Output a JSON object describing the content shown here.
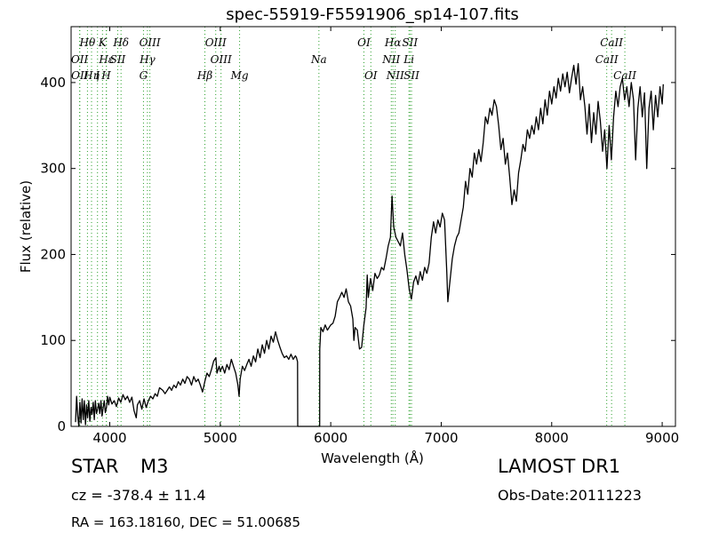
{
  "chart_data": {
    "type": "line",
    "title": "spec-55919-F5591906_sp14-107.fits",
    "xlabel": "Wavelength (Å)",
    "ylabel": "Flux (relative)",
    "xlim": [
      3650,
      9120
    ],
    "ylim": [
      0,
      465
    ],
    "xticks": [
      4000,
      5000,
      6000,
      7000,
      8000,
      9000
    ],
    "yticks": [
      0,
      100,
      200,
      300,
      400
    ],
    "grid": false,
    "series": [
      {
        "values": [
          [
            3690,
            5
          ],
          [
            3700,
            35
          ],
          [
            3710,
            12
          ],
          [
            3720,
            0
          ],
          [
            3730,
            28
          ],
          [
            3740,
            4
          ],
          [
            3750,
            32
          ],
          [
            3760,
            8
          ],
          [
            3770,
            30
          ],
          [
            3780,
            2
          ],
          [
            3790,
            25
          ],
          [
            3800,
            10
          ],
          [
            3810,
            30
          ],
          [
            3820,
            6
          ],
          [
            3830,
            22
          ],
          [
            3840,
            14
          ],
          [
            3850,
            28
          ],
          [
            3860,
            8
          ],
          [
            3870,
            30
          ],
          [
            3880,
            15
          ],
          [
            3890,
            20
          ],
          [
            3900,
            27
          ],
          [
            3910,
            15
          ],
          [
            3920,
            30
          ],
          [
            3930,
            12
          ],
          [
            3940,
            22
          ],
          [
            3950,
            30
          ],
          [
            3960,
            16
          ],
          [
            3970,
            22
          ],
          [
            3980,
            35
          ],
          [
            3990,
            25
          ],
          [
            4000,
            34
          ],
          [
            4020,
            26
          ],
          [
            4040,
            30
          ],
          [
            4060,
            23
          ],
          [
            4080,
            33
          ],
          [
            4100,
            28
          ],
          [
            4120,
            37
          ],
          [
            4140,
            31
          ],
          [
            4160,
            35
          ],
          [
            4180,
            28
          ],
          [
            4200,
            34
          ],
          [
            4220,
            18
          ],
          [
            4240,
            10
          ],
          [
            4250,
            25
          ],
          [
            4270,
            30
          ],
          [
            4290,
            20
          ],
          [
            4310,
            32
          ],
          [
            4330,
            22
          ],
          [
            4350,
            30
          ],
          [
            4370,
            35
          ],
          [
            4390,
            32
          ],
          [
            4410,
            38
          ],
          [
            4430,
            35
          ],
          [
            4450,
            45
          ],
          [
            4480,
            42
          ],
          [
            4500,
            38
          ],
          [
            4520,
            42
          ],
          [
            4540,
            46
          ],
          [
            4560,
            42
          ],
          [
            4580,
            48
          ],
          [
            4600,
            45
          ],
          [
            4620,
            52
          ],
          [
            4640,
            48
          ],
          [
            4660,
            55
          ],
          [
            4680,
            50
          ],
          [
            4700,
            58
          ],
          [
            4720,
            55
          ],
          [
            4740,
            48
          ],
          [
            4760,
            58
          ],
          [
            4780,
            52
          ],
          [
            4800,
            55
          ],
          [
            4820,
            48
          ],
          [
            4840,
            40
          ],
          [
            4860,
            52
          ],
          [
            4880,
            62
          ],
          [
            4900,
            58
          ],
          [
            4920,
            66
          ],
          [
            4940,
            76
          ],
          [
            4960,
            80
          ],
          [
            4970,
            62
          ],
          [
            4990,
            70
          ],
          [
            5000,
            64
          ],
          [
            5020,
            70
          ],
          [
            5040,
            62
          ],
          [
            5060,
            72
          ],
          [
            5080,
            66
          ],
          [
            5100,
            78
          ],
          [
            5120,
            70
          ],
          [
            5140,
            62
          ],
          [
            5160,
            48
          ],
          [
            5170,
            35
          ],
          [
            5180,
            55
          ],
          [
            5200,
            70
          ],
          [
            5220,
            65
          ],
          [
            5240,
            72
          ],
          [
            5260,
            78
          ],
          [
            5280,
            70
          ],
          [
            5300,
            82
          ],
          [
            5320,
            75
          ],
          [
            5340,
            90
          ],
          [
            5360,
            80
          ],
          [
            5380,
            95
          ],
          [
            5400,
            85
          ],
          [
            5420,
            100
          ],
          [
            5440,
            90
          ],
          [
            5460,
            105
          ],
          [
            5480,
            98
          ],
          [
            5500,
            110
          ],
          [
            5520,
            100
          ],
          [
            5540,
            92
          ],
          [
            5560,
            85
          ],
          [
            5580,
            80
          ],
          [
            5600,
            82
          ],
          [
            5620,
            78
          ],
          [
            5640,
            84
          ],
          [
            5660,
            78
          ],
          [
            5680,
            82
          ],
          [
            5690,
            80
          ],
          [
            5700,
            75
          ],
          [
            5701,
            0
          ],
          [
            5900,
            0
          ],
          [
            5901,
            90
          ],
          [
            5910,
            115
          ],
          [
            5930,
            110
          ],
          [
            5950,
            118
          ],
          [
            5970,
            112
          ],
          [
            6000,
            118
          ],
          [
            6020,
            120
          ],
          [
            6040,
            128
          ],
          [
            6060,
            145
          ],
          [
            6080,
            150
          ],
          [
            6100,
            156
          ],
          [
            6120,
            150
          ],
          [
            6140,
            160
          ],
          [
            6160,
            145
          ],
          [
            6180,
            140
          ],
          [
            6200,
            125
          ],
          [
            6210,
            100
          ],
          [
            6220,
            115
          ],
          [
            6240,
            112
          ],
          [
            6260,
            90
          ],
          [
            6280,
            92
          ],
          [
            6300,
            118
          ],
          [
            6320,
            138
          ],
          [
            6330,
            176
          ],
          [
            6340,
            150
          ],
          [
            6360,
            172
          ],
          [
            6380,
            158
          ],
          [
            6400,
            178
          ],
          [
            6420,
            172
          ],
          [
            6440,
            176
          ],
          [
            6460,
            185
          ],
          [
            6480,
            182
          ],
          [
            6500,
            195
          ],
          [
            6520,
            210
          ],
          [
            6540,
            220
          ],
          [
            6555,
            268
          ],
          [
            6570,
            232
          ],
          [
            6590,
            220
          ],
          [
            6610,
            215
          ],
          [
            6630,
            210
          ],
          [
            6650,
            225
          ],
          [
            6670,
            200
          ],
          [
            6690,
            182
          ],
          [
            6710,
            160
          ],
          [
            6730,
            148
          ],
          [
            6750,
            168
          ],
          [
            6770,
            175
          ],
          [
            6790,
            165
          ],
          [
            6810,
            180
          ],
          [
            6830,
            170
          ],
          [
            6850,
            185
          ],
          [
            6870,
            178
          ],
          [
            6890,
            190
          ],
          [
            6910,
            220
          ],
          [
            6930,
            238
          ],
          [
            6950,
            225
          ],
          [
            6970,
            240
          ],
          [
            6990,
            232
          ],
          [
            7010,
            248
          ],
          [
            7030,
            240
          ],
          [
            7050,
            180
          ],
          [
            7060,
            145
          ],
          [
            7080,
            170
          ],
          [
            7100,
            195
          ],
          [
            7120,
            210
          ],
          [
            7140,
            220
          ],
          [
            7160,
            225
          ],
          [
            7180,
            240
          ],
          [
            7200,
            255
          ],
          [
            7220,
            285
          ],
          [
            7240,
            270
          ],
          [
            7260,
            300
          ],
          [
            7280,
            290
          ],
          [
            7300,
            318
          ],
          [
            7320,
            305
          ],
          [
            7340,
            322
          ],
          [
            7360,
            308
          ],
          [
            7380,
            330
          ],
          [
            7400,
            360
          ],
          [
            7420,
            352
          ],
          [
            7440,
            370
          ],
          [
            7460,
            362
          ],
          [
            7480,
            380
          ],
          [
            7500,
            372
          ],
          [
            7520,
            350
          ],
          [
            7540,
            322
          ],
          [
            7560,
            335
          ],
          [
            7580,
            305
          ],
          [
            7600,
            318
          ],
          [
            7620,
            290
          ],
          [
            7640,
            258
          ],
          [
            7660,
            275
          ],
          [
            7680,
            262
          ],
          [
            7700,
            295
          ],
          [
            7720,
            310
          ],
          [
            7740,
            328
          ],
          [
            7760,
            320
          ],
          [
            7780,
            345
          ],
          [
            7800,
            335
          ],
          [
            7820,
            350
          ],
          [
            7840,
            340
          ],
          [
            7860,
            360
          ],
          [
            7880,
            345
          ],
          [
            7900,
            370
          ],
          [
            7920,
            352
          ],
          [
            7940,
            380
          ],
          [
            7960,
            362
          ],
          [
            7980,
            390
          ],
          [
            8000,
            375
          ],
          [
            8020,
            395
          ],
          [
            8040,
            382
          ],
          [
            8060,
            405
          ],
          [
            8080,
            390
          ],
          [
            8100,
            410
          ],
          [
            8120,
            395
          ],
          [
            8140,
            412
          ],
          [
            8160,
            388
          ],
          [
            8180,
            405
          ],
          [
            8200,
            420
          ],
          [
            8220,
            398
          ],
          [
            8240,
            422
          ],
          [
            8260,
            380
          ],
          [
            8280,
            395
          ],
          [
            8300,
            372
          ],
          [
            8320,
            340
          ],
          [
            8340,
            375
          ],
          [
            8360,
            330
          ],
          [
            8380,
            365
          ],
          [
            8400,
            340
          ],
          [
            8420,
            378
          ],
          [
            8440,
            355
          ],
          [
            8460,
            320
          ],
          [
            8480,
            345
          ],
          [
            8500,
            300
          ],
          [
            8520,
            350
          ],
          [
            8540,
            310
          ],
          [
            8560,
            360
          ],
          [
            8580,
            390
          ],
          [
            8600,
            372
          ],
          [
            8620,
            395
          ],
          [
            8640,
            405
          ],
          [
            8660,
            380
          ],
          [
            8680,
            395
          ],
          [
            8700,
            372
          ],
          [
            8720,
            400
          ],
          [
            8740,
            380
          ],
          [
            8760,
            310
          ],
          [
            8780,
            370
          ],
          [
            8800,
            395
          ],
          [
            8820,
            360
          ],
          [
            8840,
            388
          ],
          [
            8860,
            300
          ],
          [
            8880,
            370
          ],
          [
            8900,
            390
          ],
          [
            8920,
            345
          ],
          [
            8940,
            385
          ],
          [
            8960,
            360
          ],
          [
            8980,
            395
          ],
          [
            9000,
            375
          ],
          [
            9010,
            398
          ]
        ]
      }
    ],
    "lines": [
      {
        "label": "Hθ",
        "x": 3798,
        "row": 0
      },
      {
        "label": "K",
        "x": 3934,
        "row": 0
      },
      {
        "label": "Hδ",
        "x": 4102,
        "row": 0
      },
      {
        "label": "OIII",
        "x": 4363,
        "row": 0
      },
      {
        "label": "OIII",
        "x": 4959,
        "row": 0
      },
      {
        "label": "OI",
        "x": 6300,
        "row": 0
      },
      {
        "label": "Hα",
        "x": 6563,
        "row": 0
      },
      {
        "label": "SII",
        "x": 6717,
        "row": 0
      },
      {
        "label": "CaII",
        "x": 8542,
        "row": 0
      },
      {
        "label": "OII",
        "x": 3727,
        "row": 1
      },
      {
        "label": "Hε",
        "x": 3970,
        "row": 1
      },
      {
        "label": "SII",
        "x": 4072,
        "row": 1
      },
      {
        "label": "Hγ",
        "x": 4341,
        "row": 1
      },
      {
        "label": "OIII",
        "x": 5007,
        "row": 1
      },
      {
        "label": "Na",
        "x": 5893,
        "row": 1
      },
      {
        "label": "NII",
        "x": 6548,
        "row": 1
      },
      {
        "label": "Li",
        "x": 6708,
        "row": 1
      },
      {
        "label": "CaII",
        "x": 8498,
        "row": 1
      },
      {
        "label": "OII",
        "x": 3729,
        "row": 2
      },
      {
        "label": "Hη",
        "x": 3835,
        "row": 2
      },
      {
        "label": "I",
        "x": 3889,
        "row": 2
      },
      {
        "label": "H",
        "x": 3968,
        "row": 2
      },
      {
        "label": "G",
        "x": 4305,
        "row": 2
      },
      {
        "label": "Hβ",
        "x": 4861,
        "row": 2
      },
      {
        "label": "Mg",
        "x": 5175,
        "row": 2
      },
      {
        "label": "OI",
        "x": 6363,
        "row": 2
      },
      {
        "label": "NII",
        "x": 6584,
        "row": 2
      },
      {
        "label": "SII",
        "x": 6731,
        "row": 2
      },
      {
        "label": "CaII",
        "x": 8662,
        "row": 2
      }
    ],
    "line_color": "#2ca02c"
  },
  "info": {
    "object_class": "STAR",
    "subclass": "M3",
    "survey": "LAMOST DR1",
    "redshift": "cz = -378.4  ± 11.4",
    "obs_date": "Obs-Date:20111223",
    "coords": "RA = 163.18160, DEC = 51.00685"
  }
}
